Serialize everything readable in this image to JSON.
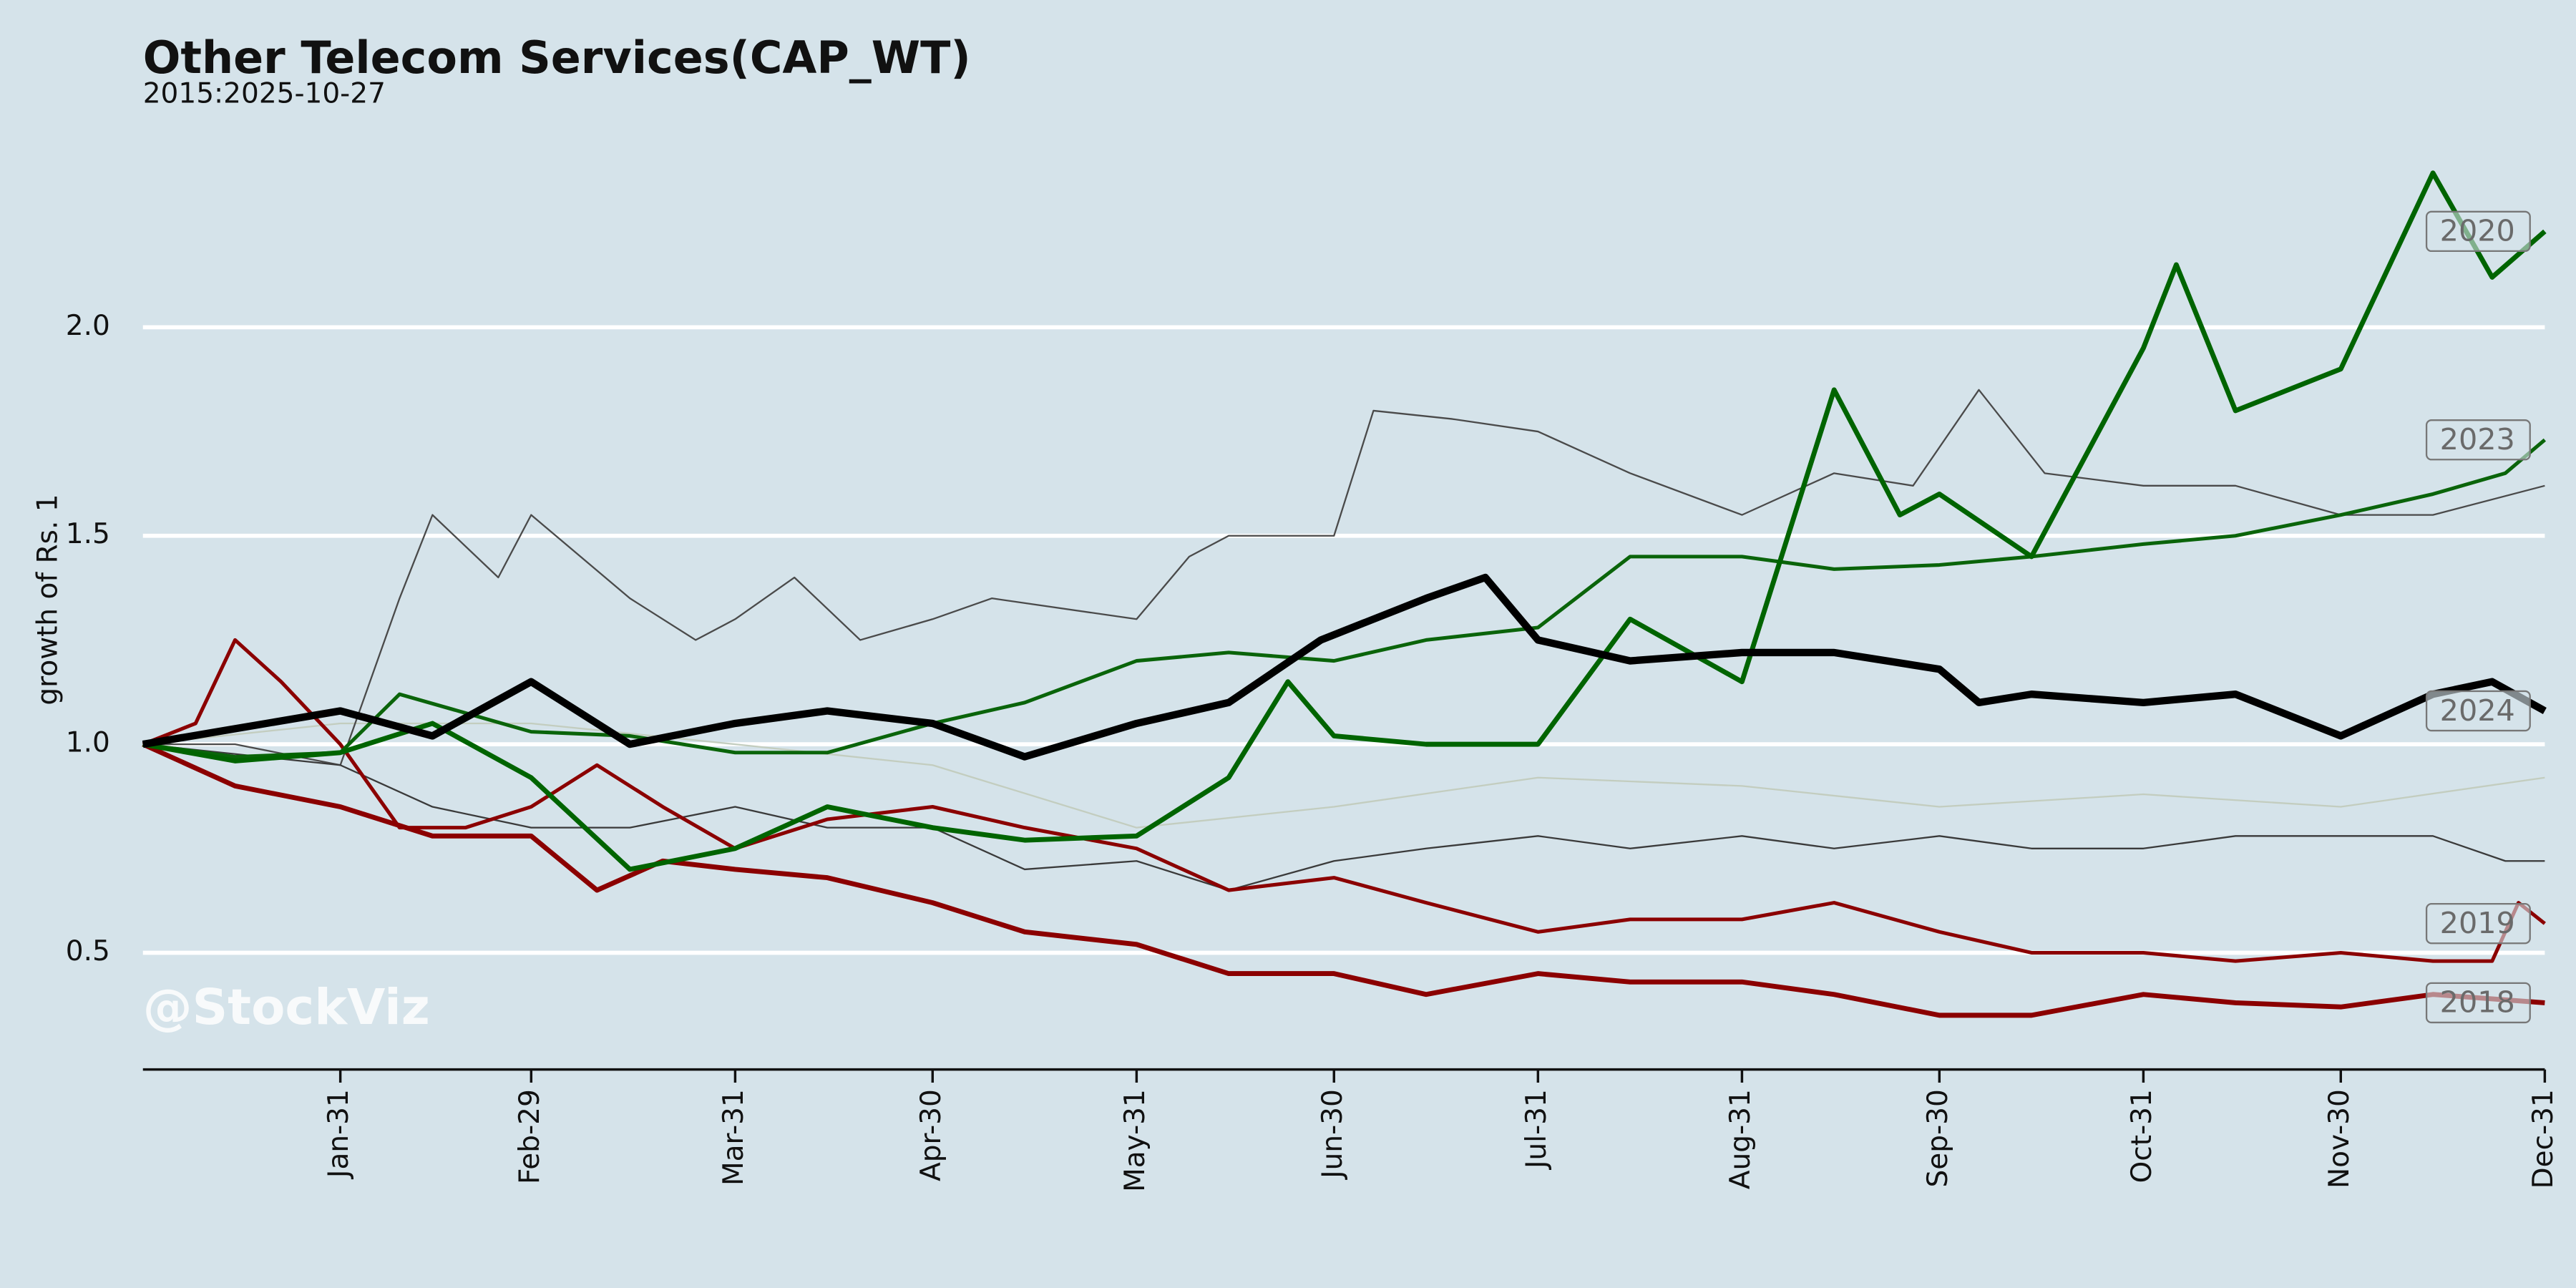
{
  "chart_data": {
    "type": "line",
    "title": "Other Telecom Services(CAP_WT)",
    "subtitle": "2015:2025-10-27",
    "y_label": "growth of Rs. 1",
    "watermark": "@StockViz",
    "grid": true,
    "xlim": [
      1,
      366
    ],
    "ylim": [
      0.22,
      2.45
    ],
    "xticks": [
      {
        "value": 31,
        "label": "Jan-31"
      },
      {
        "value": 60,
        "label": "Feb-29"
      },
      {
        "value": 91,
        "label": "Mar-31"
      },
      {
        "value": 121,
        "label": "Apr-30"
      },
      {
        "value": 152,
        "label": "May-31"
      },
      {
        "value": 182,
        "label": "Jun-30"
      },
      {
        "value": 213,
        "label": "Jul-31"
      },
      {
        "value": 244,
        "label": "Aug-31"
      },
      {
        "value": 274,
        "label": "Sep-30"
      },
      {
        "value": 305,
        "label": "Oct-31"
      },
      {
        "value": 335,
        "label": "Nov-30"
      },
      {
        "value": 366,
        "label": "Dec-31"
      }
    ],
    "yticks": [
      0.5,
      {
        "value": 1.0,
        "label": "1.0"
      },
      1.5,
      {
        "value": 2.0,
        "label": "2.0"
      }
    ],
    "series": [
      {
        "color": "#c3cdbf",
        "width": 1,
        "x": [
          1,
          31,
          60,
          91,
          121,
          152,
          182,
          213,
          244,
          274,
          305,
          335,
          366
        ],
        "values": [
          1.0,
          1.05,
          1.05,
          1.0,
          0.95,
          0.8,
          0.85,
          0.92,
          0.9,
          0.85,
          0.88,
          0.85,
          0.92
        ]
      },
      {
        "color": "#4a4a4a",
        "width": 1,
        "x": [
          1,
          15,
          31,
          40,
          45,
          55,
          60,
          75,
          85,
          91,
          100,
          110,
          121,
          130,
          152,
          160,
          166,
          182,
          188,
          200,
          213,
          227,
          244,
          258,
          270,
          280,
          290,
          305,
          319,
          335,
          349,
          366
        ],
        "values": [
          1.0,
          1.0,
          0.95,
          1.35,
          1.55,
          1.4,
          1.55,
          1.35,
          1.25,
          1.3,
          1.4,
          1.25,
          1.3,
          1.35,
          1.3,
          1.45,
          1.5,
          1.5,
          1.8,
          1.78,
          1.75,
          1.65,
          1.55,
          1.65,
          1.62,
          1.85,
          1.65,
          1.62,
          1.62,
          1.55,
          1.55,
          1.62
        ]
      },
      {
        "color": "#3a3a3a",
        "width": 1,
        "x": [
          1,
          31,
          45,
          60,
          75,
          91,
          105,
          121,
          135,
          152,
          166,
          182,
          196,
          213,
          227,
          244,
          258,
          274,
          288,
          305,
          319,
          335,
          349,
          360,
          366
        ],
        "values": [
          1.0,
          0.95,
          0.85,
          0.8,
          0.8,
          0.85,
          0.8,
          0.8,
          0.7,
          0.72,
          0.65,
          0.72,
          0.75,
          0.78,
          0.75,
          0.78,
          0.75,
          0.78,
          0.75,
          0.75,
          0.78,
          0.78,
          0.78,
          0.72,
          0.72
        ]
      },
      {
        "name": "2018",
        "color": "#8b0000",
        "width": 3,
        "x": [
          1,
          15,
          31,
          45,
          60,
          70,
          80,
          91,
          105,
          121,
          135,
          152,
          166,
          182,
          196,
          213,
          227,
          244,
          258,
          274,
          288,
          305,
          319,
          335,
          349,
          366
        ],
        "values": [
          1.0,
          0.9,
          0.85,
          0.78,
          0.78,
          0.65,
          0.72,
          0.7,
          0.68,
          0.62,
          0.55,
          0.52,
          0.45,
          0.45,
          0.4,
          0.45,
          0.43,
          0.43,
          0.4,
          0.35,
          0.35,
          0.4,
          0.38,
          0.37,
          0.4,
          0.38
        ]
      },
      {
        "name": "2019",
        "color": "#8b0000",
        "width": 2.2,
        "x": [
          1,
          9,
          15,
          22,
          31,
          40,
          50,
          60,
          70,
          80,
          91,
          105,
          121,
          135,
          152,
          166,
          182,
          196,
          213,
          227,
          244,
          258,
          274,
          288,
          305,
          319,
          335,
          349,
          358,
          362,
          366
        ],
        "values": [
          1.0,
          1.05,
          1.25,
          1.15,
          1.0,
          0.8,
          0.8,
          0.85,
          0.95,
          0.85,
          0.75,
          0.82,
          0.85,
          0.8,
          0.75,
          0.65,
          0.68,
          0.62,
          0.55,
          0.58,
          0.58,
          0.62,
          0.55,
          0.5,
          0.5,
          0.48,
          0.5,
          0.48,
          0.48,
          0.62,
          0.57
        ]
      },
      {
        "name": "2023",
        "color": "#0a640a",
        "width": 2.2,
        "x": [
          1,
          15,
          31,
          40,
          60,
          75,
          91,
          105,
          121,
          135,
          152,
          166,
          182,
          196,
          213,
          227,
          244,
          258,
          274,
          288,
          305,
          319,
          335,
          349,
          360,
          366
        ],
        "values": [
          1.0,
          0.97,
          0.98,
          1.12,
          1.03,
          1.02,
          0.98,
          0.98,
          1.05,
          1.1,
          1.2,
          1.22,
          1.2,
          1.25,
          1.28,
          1.45,
          1.45,
          1.42,
          1.43,
          1.45,
          1.48,
          1.5,
          1.55,
          1.6,
          1.65,
          1.73
        ]
      },
      {
        "name": "2020",
        "color": "#006400",
        "width": 3,
        "x": [
          1,
          15,
          31,
          45,
          60,
          75,
          91,
          105,
          121,
          135,
          152,
          166,
          175,
          182,
          196,
          213,
          227,
          244,
          258,
          268,
          274,
          288,
          305,
          310,
          319,
          335,
          349,
          358,
          366
        ],
        "values": [
          1.0,
          0.96,
          0.98,
          1.05,
          0.92,
          0.7,
          0.75,
          0.85,
          0.8,
          0.77,
          0.78,
          0.92,
          1.15,
          1.02,
          1.0,
          1.0,
          1.3,
          1.15,
          1.85,
          1.55,
          1.6,
          1.45,
          1.95,
          2.15,
          1.8,
          1.9,
          2.37,
          2.12,
          2.23
        ]
      },
      {
        "name": "2024",
        "color": "#000000",
        "width": 4.5,
        "x": [
          1,
          31,
          45,
          60,
          75,
          91,
          105,
          121,
          135,
          152,
          166,
          180,
          196,
          205,
          213,
          227,
          244,
          258,
          274,
          280,
          288,
          305,
          319,
          335,
          349,
          358,
          366
        ],
        "values": [
          1.0,
          1.08,
          1.02,
          1.15,
          1.0,
          1.05,
          1.08,
          1.05,
          0.97,
          1.05,
          1.1,
          1.25,
          1.35,
          1.4,
          1.25,
          1.2,
          1.22,
          1.22,
          1.18,
          1.1,
          1.12,
          1.1,
          1.12,
          1.02,
          1.12,
          1.15,
          1.08
        ]
      }
    ]
  }
}
